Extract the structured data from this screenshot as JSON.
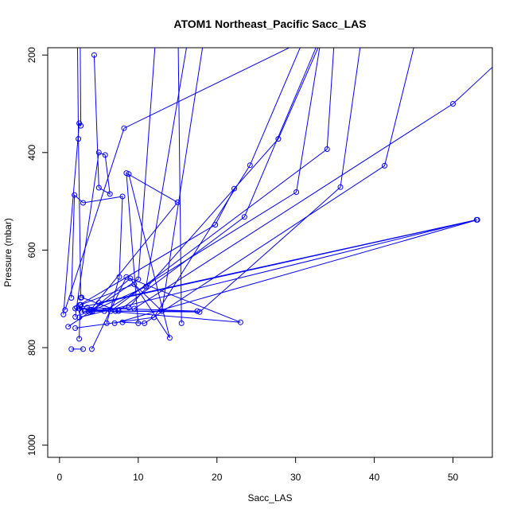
{
  "chart_data": {
    "type": "line",
    "title": "ATOM1 Northeast_Pacific Sacc_LAS",
    "xlabel": "Sacc_LAS",
    "ylabel": "Pressure (mbar)",
    "xlim": [
      -1.5,
      55
    ],
    "ylim": [
      1025,
      185
    ],
    "y_reversed": true,
    "x_ticks": [
      0,
      10,
      20,
      30,
      40,
      50
    ],
    "y_ticks": [
      200,
      400,
      600,
      800,
      1000
    ],
    "x_tick_labels": [
      "0",
      "10",
      "20",
      "30",
      "40",
      "50"
    ],
    "y_tick_labels": [
      "200",
      "400",
      "600",
      "800",
      "1000"
    ],
    "grid": false,
    "legend": "none",
    "color": "#0000ff",
    "marker": "open-circle",
    "series": [
      {
        "x": [
          0.5,
          2.5,
          2.7,
          2.6
        ],
        "y": [
          732,
          340,
          345,
          115
        ]
      },
      {
        "x": [
          2.7,
          2.4,
          2.2
        ],
        "y": [
          698,
          372,
          30
        ]
      },
      {
        "x": [
          1.5,
          1.9,
          3.0,
          8.0,
          7.6,
          6.0
        ],
        "y": [
          698,
          487,
          503,
          490,
          655,
          750
        ]
      },
      {
        "x": [
          15.5,
          15.0
        ],
        "y": [
          750,
          60
        ]
      },
      {
        "x": [
          2.0,
          5.0,
          5.8,
          6.4,
          5.0,
          4.4
        ],
        "y": [
          737,
          400,
          405,
          485,
          472,
          200
        ]
      },
      {
        "x": [
          10.0,
          8.5,
          15.0,
          4.0
        ],
        "y": [
          750,
          442,
          502,
          722
        ]
      },
      {
        "x": [
          4.0,
          9.0,
          14.0,
          8.8
        ],
        "y": [
          725,
          658,
          780,
          444
        ]
      },
      {
        "x": [
          1.5,
          3.0
        ],
        "y": [
          803,
          803
        ]
      },
      {
        "x": [
          4.1,
          8.5,
          23.0,
          2.5
        ],
        "y": [
          803,
          655,
          748,
          720
        ]
      },
      {
        "x": [
          2.5,
          2.6,
          19.8,
          22.2
        ],
        "y": [
          782,
          712,
          548,
          474
        ]
      },
      {
        "x": [
          3.8,
          11.0,
          16.5
        ],
        "y": [
          727,
          675,
          150
        ]
      },
      {
        "x": [
          2.7,
          9.5,
          13.0,
          18.5
        ],
        "y": [
          712,
          670,
          725,
          150
        ]
      },
      {
        "x": [
          1.1,
          10.0,
          12.5
        ],
        "y": [
          757,
          660,
          100
        ]
      },
      {
        "x": [
          2.8,
          7.5,
          23.5,
          33.5
        ],
        "y": [
          697,
          725,
          532,
          150
        ]
      },
      {
        "x": [
          3.2,
          8.8,
          27.8,
          33.0
        ],
        "y": [
          725,
          718,
          372,
          180
        ]
      },
      {
        "x": [
          2.0,
          12.0,
          24.2,
          31.5
        ],
        "y": [
          760,
          738,
          426,
          150
        ]
      },
      {
        "x": [
          2.8,
          5.7,
          30.1,
          33.5
        ],
        "y": [
          727,
          725,
          481,
          140
        ]
      },
      {
        "x": [
          3.5,
          17.5,
          4.2
        ],
        "y": [
          718,
          725,
          725
        ]
      },
      {
        "x": [
          2.2,
          6.5,
          34.0,
          35.0
        ],
        "y": [
          718,
          725,
          393,
          150
        ]
      },
      {
        "x": [
          7.1,
          17.8,
          35.7,
          38.5
        ],
        "y": [
          725,
          727,
          471,
          150
        ]
      },
      {
        "x": [
          8.0,
          10.8,
          41.3,
          46.0
        ],
        "y": [
          748,
          750,
          427,
          120
        ]
      },
      {
        "x": [
          7.0,
          53.1,
          2.0
        ],
        "y": [
          750,
          538,
          720
        ]
      },
      {
        "x": [
          5.0,
          53.0,
          2.5
        ],
        "y": [
          708,
          538,
          738
        ]
      },
      {
        "x": [
          0.7,
          8.2,
          40.0
        ],
        "y": [
          723,
          350,
          100
        ]
      },
      {
        "x": [
          9.5,
          50.0,
          60.0
        ],
        "y": [
          720,
          300,
          150
        ]
      }
    ]
  }
}
